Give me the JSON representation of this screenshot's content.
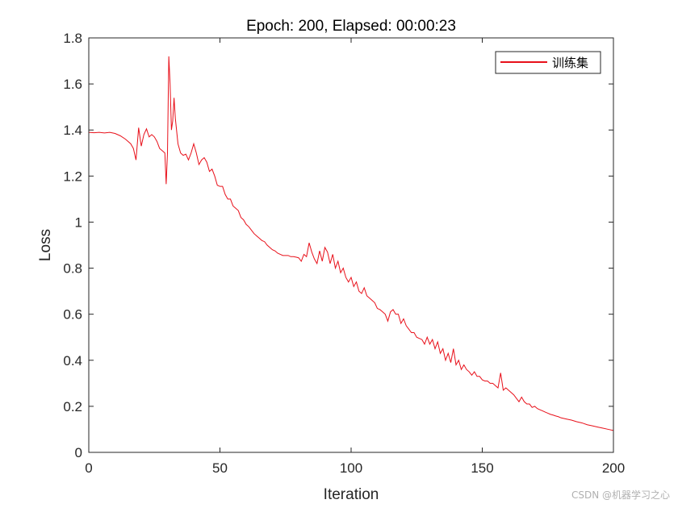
{
  "chart_data": {
    "type": "line",
    "title": "Epoch: 200, Elapsed: 00:00:23",
    "xlabel": "Iteration",
    "ylabel": "Loss",
    "xlim": [
      0,
      200
    ],
    "ylim": [
      0,
      1.8
    ],
    "xticks": [
      0,
      50,
      100,
      150,
      200
    ],
    "yticks": [
      0,
      0.2,
      0.4,
      0.6,
      0.8,
      1,
      1.2,
      1.4,
      1.6,
      1.8
    ],
    "ytick_labels": [
      "0",
      "0.2",
      "0.4",
      "0.6",
      "0.8",
      "1",
      "1.2",
      "1.4",
      "1.6",
      "1.8"
    ],
    "legend": {
      "position": "top-right"
    },
    "series": [
      {
        "name": "训练集",
        "color": "#e8101a",
        "points": [
          [
            0,
            1.39
          ],
          [
            2,
            1.388
          ],
          [
            4,
            1.39
          ],
          [
            6,
            1.387
          ],
          [
            8,
            1.39
          ],
          [
            10,
            1.385
          ],
          [
            12,
            1.375
          ],
          [
            14,
            1.36
          ],
          [
            16,
            1.34
          ],
          [
            17,
            1.32
          ],
          [
            18,
            1.27
          ],
          [
            19,
            1.41
          ],
          [
            20,
            1.33
          ],
          [
            21,
            1.38
          ],
          [
            22,
            1.405
          ],
          [
            23,
            1.37
          ],
          [
            24,
            1.38
          ],
          [
            25,
            1.37
          ],
          [
            26,
            1.35
          ],
          [
            27,
            1.32
          ],
          [
            28,
            1.31
          ],
          [
            29,
            1.3
          ],
          [
            29.5,
            1.165
          ],
          [
            30,
            1.3
          ],
          [
            30.5,
            1.72
          ],
          [
            31,
            1.6
          ],
          [
            31.5,
            1.4
          ],
          [
            32,
            1.44
          ],
          [
            32.5,
            1.54
          ],
          [
            33,
            1.45
          ],
          [
            34,
            1.34
          ],
          [
            35,
            1.3
          ],
          [
            36,
            1.29
          ],
          [
            37,
            1.295
          ],
          [
            38,
            1.27
          ],
          [
            39,
            1.3
          ],
          [
            40,
            1.34
          ],
          [
            41,
            1.3
          ],
          [
            42,
            1.25
          ],
          [
            43,
            1.27
          ],
          [
            44,
            1.28
          ],
          [
            45,
            1.26
          ],
          [
            46,
            1.22
          ],
          [
            47,
            1.23
          ],
          [
            48,
            1.2
          ],
          [
            49,
            1.16
          ],
          [
            50,
            1.155
          ],
          [
            51,
            1.155
          ],
          [
            52,
            1.12
          ],
          [
            53,
            1.1
          ],
          [
            54,
            1.1
          ],
          [
            55,
            1.07
          ],
          [
            56,
            1.06
          ],
          [
            57,
            1.05
          ],
          [
            58,
            1.02
          ],
          [
            59,
            1.01
          ],
          [
            60,
            0.99
          ],
          [
            61,
            0.98
          ],
          [
            62,
            0.965
          ],
          [
            63,
            0.95
          ],
          [
            64,
            0.94
          ],
          [
            65,
            0.93
          ],
          [
            66,
            0.92
          ],
          [
            67,
            0.915
          ],
          [
            68,
            0.9
          ],
          [
            69,
            0.89
          ],
          [
            70,
            0.88
          ],
          [
            71,
            0.875
          ],
          [
            72,
            0.865
          ],
          [
            73,
            0.86
          ],
          [
            74,
            0.855
          ],
          [
            75,
            0.855
          ],
          [
            76,
            0.855
          ],
          [
            77,
            0.85
          ],
          [
            78,
            0.85
          ],
          [
            79,
            0.848
          ],
          [
            80,
            0.845
          ],
          [
            81,
            0.83
          ],
          [
            82,
            0.86
          ],
          [
            83,
            0.85
          ],
          [
            84,
            0.91
          ],
          [
            85,
            0.87
          ],
          [
            86,
            0.84
          ],
          [
            87,
            0.82
          ],
          [
            88,
            0.875
          ],
          [
            89,
            0.83
          ],
          [
            90,
            0.89
          ],
          [
            91,
            0.87
          ],
          [
            92,
            0.82
          ],
          [
            93,
            0.86
          ],
          [
            94,
            0.8
          ],
          [
            95,
            0.83
          ],
          [
            96,
            0.78
          ],
          [
            97,
            0.8
          ],
          [
            98,
            0.76
          ],
          [
            99,
            0.74
          ],
          [
            100,
            0.76
          ],
          [
            101,
            0.72
          ],
          [
            102,
            0.74
          ],
          [
            103,
            0.7
          ],
          [
            104,
            0.69
          ],
          [
            105,
            0.715
          ],
          [
            106,
            0.68
          ],
          [
            107,
            0.67
          ],
          [
            108,
            0.66
          ],
          [
            109,
            0.65
          ],
          [
            110,
            0.625
          ],
          [
            111,
            0.62
          ],
          [
            112,
            0.61
          ],
          [
            113,
            0.6
          ],
          [
            114,
            0.57
          ],
          [
            115,
            0.61
          ],
          [
            116,
            0.62
          ],
          [
            117,
            0.6
          ],
          [
            118,
            0.6
          ],
          [
            119,
            0.56
          ],
          [
            120,
            0.58
          ],
          [
            121,
            0.55
          ],
          [
            122,
            0.535
          ],
          [
            123,
            0.52
          ],
          [
            124,
            0.52
          ],
          [
            125,
            0.5
          ],
          [
            126,
            0.495
          ],
          [
            127,
            0.49
          ],
          [
            128,
            0.47
          ],
          [
            129,
            0.5
          ],
          [
            130,
            0.47
          ],
          [
            131,
            0.49
          ],
          [
            132,
            0.45
          ],
          [
            133,
            0.48
          ],
          [
            134,
            0.43
          ],
          [
            135,
            0.45
          ],
          [
            136,
            0.4
          ],
          [
            137,
            0.43
          ],
          [
            138,
            0.39
          ],
          [
            139,
            0.45
          ],
          [
            140,
            0.38
          ],
          [
            141,
            0.4
          ],
          [
            142,
            0.36
          ],
          [
            143,
            0.38
          ],
          [
            144,
            0.36
          ],
          [
            145,
            0.35
          ],
          [
            146,
            0.335
          ],
          [
            147,
            0.35
          ],
          [
            148,
            0.33
          ],
          [
            149,
            0.33
          ],
          [
            150,
            0.315
          ],
          [
            151,
            0.31
          ],
          [
            152,
            0.31
          ],
          [
            153,
            0.3
          ],
          [
            154,
            0.3
          ],
          [
            155,
            0.29
          ],
          [
            156,
            0.28
          ],
          [
            157,
            0.345
          ],
          [
            158,
            0.27
          ],
          [
            159,
            0.28
          ],
          [
            160,
            0.27
          ],
          [
            161,
            0.26
          ],
          [
            162,
            0.25
          ],
          [
            163,
            0.235
          ],
          [
            164,
            0.22
          ],
          [
            165,
            0.24
          ],
          [
            166,
            0.22
          ],
          [
            167,
            0.21
          ],
          [
            168,
            0.21
          ],
          [
            169,
            0.195
          ],
          [
            170,
            0.2
          ],
          [
            171,
            0.19
          ],
          [
            172,
            0.185
          ],
          [
            173,
            0.18
          ],
          [
            174,
            0.175
          ],
          [
            175,
            0.17
          ],
          [
            176,
            0.165
          ],
          [
            177,
            0.162
          ],
          [
            178,
            0.158
          ],
          [
            179,
            0.155
          ],
          [
            180,
            0.15
          ],
          [
            182,
            0.145
          ],
          [
            184,
            0.14
          ],
          [
            186,
            0.133
          ],
          [
            188,
            0.128
          ],
          [
            190,
            0.12
          ],
          [
            192,
            0.115
          ],
          [
            194,
            0.11
          ],
          [
            196,
            0.105
          ],
          [
            198,
            0.1
          ],
          [
            200,
            0.095
          ]
        ]
      }
    ]
  },
  "watermark": "CSDN @机器学习之心"
}
